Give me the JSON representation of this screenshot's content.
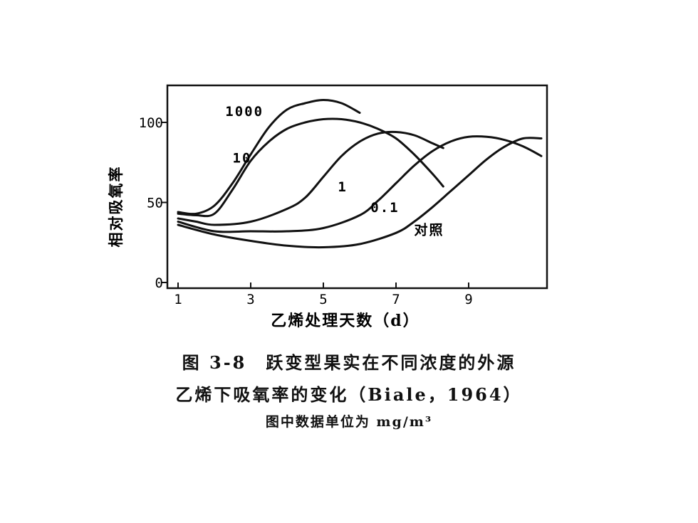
{
  "chart_data": {
    "type": "line",
    "xlabel": "乙烯处理天数（d）",
    "ylabel": "相对吸氧率",
    "xlim": [
      0.8,
      11
    ],
    "ylim": [
      0,
      120
    ],
    "x_ticks": [
      "1",
      "3",
      "5",
      "7",
      "9"
    ],
    "y_ticks": [
      "0",
      "50",
      "100"
    ],
    "grid": false,
    "legend": "inline curve labels",
    "series": [
      {
        "name": "1000",
        "x": [
          1.0,
          1.5,
          2.0,
          2.5,
          3.0,
          3.5,
          4.0,
          4.5,
          5.0,
          5.5,
          6.0
        ],
        "y": [
          44,
          43,
          48,
          62,
          80,
          97,
          108,
          112,
          114,
          112,
          106
        ]
      },
      {
        "name": "10",
        "x": [
          1.0,
          1.5,
          2.0,
          2.5,
          3.0,
          3.5,
          4.0,
          4.5,
          5.0,
          5.5,
          6.0,
          6.5,
          7.0,
          7.5,
          8.0,
          8.3
        ],
        "y": [
          43,
          42,
          43,
          58,
          76,
          88,
          96,
          100,
          102,
          102,
          100,
          96,
          90,
          80,
          68,
          60
        ]
      },
      {
        "name": "1",
        "x": [
          1.0,
          1.5,
          2.0,
          3.0,
          4.0,
          4.5,
          5.0,
          5.5,
          6.0,
          6.5,
          7.0,
          7.5,
          8.0,
          8.3
        ],
        "y": [
          40,
          38,
          36,
          38,
          46,
          53,
          66,
          79,
          88,
          93,
          94,
          92,
          87,
          84
        ]
      },
      {
        "name": "0.1",
        "x": [
          1.0,
          2.0,
          3.0,
          4.0,
          5.0,
          6.0,
          6.5,
          7.0,
          7.5,
          8.0,
          8.5,
          9.0,
          9.5,
          10.0,
          10.5,
          11.0
        ],
        "y": [
          38,
          32,
          32,
          32,
          34,
          42,
          51,
          62,
          73,
          82,
          88,
          91,
          91,
          89,
          85,
          79
        ]
      },
      {
        "name": "对照",
        "x": [
          1.0,
          2.0,
          3.0,
          4.0,
          5.0,
          6.0,
          7.0,
          7.5,
          8.0,
          8.5,
          9.0,
          9.5,
          10.0,
          10.5,
          11.0
        ],
        "y": [
          36,
          30,
          26,
          23,
          22,
          24,
          31,
          38,
          47,
          57,
          67,
          77,
          85,
          90,
          90
        ]
      }
    ]
  },
  "caption": {
    "line1": "图 3-8　跃变型果实在不同浓度的外源",
    "line2": "乙烯下吸氧率的变化（Biale，1964）",
    "line3": "图中数据单位为 mg/m³"
  }
}
